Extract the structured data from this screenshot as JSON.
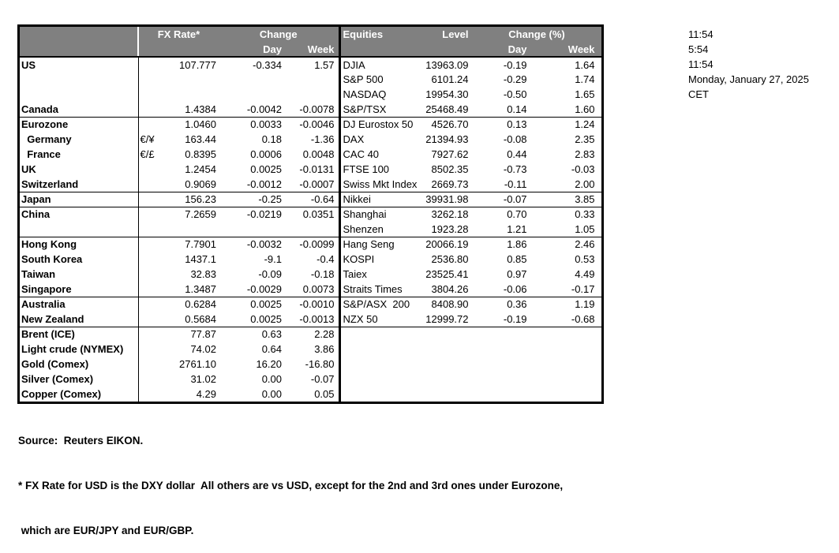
{
  "style": {
    "header_bg": "#808080",
    "header_text": "#ffffff",
    "border": "#000000"
  },
  "fx": {
    "header": {
      "rate": "FX Rate*",
      "change": "Change",
      "day": "Day",
      "week": "Week"
    },
    "rows": [
      {
        "label": "US",
        "sym": "",
        "rate": "107.777",
        "day": "-0.334",
        "week": "1.57",
        "group": false
      },
      {
        "label": "",
        "sym": "",
        "rate": "",
        "day": "",
        "week": "",
        "group": false
      },
      {
        "label": "",
        "sym": "",
        "rate": "",
        "day": "",
        "week": "",
        "group": false
      },
      {
        "label": "Canada",
        "sym": "",
        "rate": "1.4384",
        "day": "-0.0042",
        "week": "-0.0078",
        "group": false
      },
      {
        "label": "Eurozone",
        "sym": "",
        "rate": "1.0460",
        "day": "0.0033",
        "week": "-0.0046",
        "group": true
      },
      {
        "label": "  Germany",
        "sym": "€/¥",
        "rate": "163.44",
        "day": "0.18",
        "week": "-1.36",
        "group": false
      },
      {
        "label": "  France",
        "sym": "€/£",
        "rate": "0.8395",
        "day": "0.0006",
        "week": "0.0048",
        "group": false
      },
      {
        "label": "UK",
        "sym": "",
        "rate": "1.2454",
        "day": "0.0025",
        "week": "-0.0131",
        "group": false
      },
      {
        "label": "Switzerland",
        "sym": "",
        "rate": "0.9069",
        "day": "-0.0012",
        "week": "-0.0007",
        "group": false
      },
      {
        "label": "Japan",
        "sym": "",
        "rate": "156.23",
        "day": "-0.25",
        "week": "-0.64",
        "group": true
      },
      {
        "label": "China",
        "sym": "",
        "rate": "7.2659",
        "day": "-0.0219",
        "week": "0.0351",
        "group": true
      },
      {
        "label": "",
        "sym": "",
        "rate": "",
        "day": "",
        "week": "",
        "group": false
      },
      {
        "label": "Hong Kong",
        "sym": "",
        "rate": "7.7901",
        "day": "-0.0032",
        "week": "-0.0099",
        "group": true
      },
      {
        "label": "South Korea",
        "sym": "",
        "rate": "1437.1",
        "day": "-9.1",
        "week": "-0.4",
        "group": false
      },
      {
        "label": "Taiwan",
        "sym": "",
        "rate": "32.83",
        "day": "-0.09",
        "week": "-0.18",
        "group": false
      },
      {
        "label": "Singapore",
        "sym": "",
        "rate": "1.3487",
        "day": "-0.0029",
        "week": "0.0073",
        "group": false
      },
      {
        "label": "Australia",
        "sym": "",
        "rate": "0.6284",
        "day": "0.0025",
        "week": "-0.0010",
        "group": true
      },
      {
        "label": "New Zealand",
        "sym": "",
        "rate": "0.5684",
        "day": "0.0025",
        "week": "-0.0013",
        "group": false
      },
      {
        "label": "Brent (ICE)",
        "sym": "",
        "rate": "77.87",
        "day": "0.63",
        "week": "2.28",
        "group": true
      },
      {
        "label": "Light crude (NYMEX)",
        "sym": "",
        "rate": "74.02",
        "day": "0.64",
        "week": "3.86",
        "group": false
      },
      {
        "label": "Gold (Comex)",
        "sym": "",
        "rate": "2761.10",
        "day": "16.20",
        "week": "-16.80",
        "group": false
      },
      {
        "label": "Silver (Comex)",
        "sym": "",
        "rate": "31.02",
        "day": "0.00",
        "week": "-0.07",
        "group": false
      },
      {
        "label": "Copper (Comex)",
        "sym": "",
        "rate": "4.29",
        "day": "0.00",
        "week": "0.05",
        "group": false
      }
    ]
  },
  "eq": {
    "header": {
      "title": "Equities",
      "level": "Level",
      "change": "Change (%)",
      "day": "Day",
      "week": "Week"
    },
    "rows": [
      {
        "label": "DJIA",
        "level": "13963.09",
        "day": "-0.19",
        "week": "1.64",
        "group": false
      },
      {
        "label": "S&P 500",
        "level": "6101.24",
        "day": "-0.29",
        "week": "1.74",
        "group": false
      },
      {
        "label": "NASDAQ",
        "level": "19954.30",
        "day": "-0.50",
        "week": "1.65",
        "group": false
      },
      {
        "label": "S&P/TSX",
        "level": "25468.49",
        "day": "0.14",
        "week": "1.60",
        "group": false
      },
      {
        "label": "DJ Eurostox 50",
        "level": "4526.70",
        "day": "0.13",
        "week": "1.24",
        "group": true
      },
      {
        "label": "DAX",
        "level": "21394.93",
        "day": "-0.08",
        "week": "2.35",
        "group": false
      },
      {
        "label": "CAC 40",
        "level": "7927.62",
        "day": "0.44",
        "week": "2.83",
        "group": false
      },
      {
        "label": "FTSE 100",
        "level": "8502.35",
        "day": "-0.73",
        "week": "-0.03",
        "group": false
      },
      {
        "label": "Swiss Mkt Index",
        "level": "2669.73",
        "day": "-0.11",
        "week": "2.00",
        "group": false
      },
      {
        "label": "Nikkei",
        "level": "39931.98",
        "day": "-0.07",
        "week": "3.85",
        "group": true
      },
      {
        "label": "Shanghai",
        "level": "3262.18",
        "day": "0.70",
        "week": "0.33",
        "group": true
      },
      {
        "label": "Shenzen",
        "level": "1923.28",
        "day": "1.21",
        "week": "1.05",
        "group": false
      },
      {
        "label": "Hang Seng",
        "level": "20066.19",
        "day": "1.86",
        "week": "2.46",
        "group": true
      },
      {
        "label": "KOSPI",
        "level": "2536.80",
        "day": "0.85",
        "week": "0.53",
        "group": false
      },
      {
        "label": "Taiex",
        "level": "23525.41",
        "day": "0.97",
        "week": "4.49",
        "group": false
      },
      {
        "label": "Straits Times",
        "level": "3804.26",
        "day": "-0.06",
        "week": "-0.17",
        "group": false
      },
      {
        "label": "S&P/ASX  200",
        "level": "8408.90",
        "day": "0.36",
        "week": "1.19",
        "group": true
      },
      {
        "label": "NZX 50",
        "level": "12999.72",
        "day": "-0.19",
        "week": "-0.68",
        "group": false
      },
      {
        "label": "",
        "level": "",
        "day": "",
        "week": "",
        "group": true
      },
      {
        "label": "",
        "level": "",
        "day": "",
        "week": "",
        "group": false
      },
      {
        "label": "",
        "level": "",
        "day": "",
        "week": "",
        "group": false
      },
      {
        "label": "",
        "level": "",
        "day": "",
        "week": "",
        "group": false
      },
      {
        "label": "",
        "level": "",
        "day": "",
        "week": "",
        "group": false
      }
    ]
  },
  "times": {
    "lines": [
      "11:54",
      "5:54",
      "11:54",
      "Monday, January 27, 2025",
      "CET"
    ]
  },
  "footer": {
    "source": "Source:  Reuters EIKON.",
    "note1": "* FX Rate for USD is the DXY dollar  All others are vs USD, except for the 2nd and 3rd ones under Eurozone,",
    "note2": " which are EUR/JPY and EUR/GBP."
  }
}
